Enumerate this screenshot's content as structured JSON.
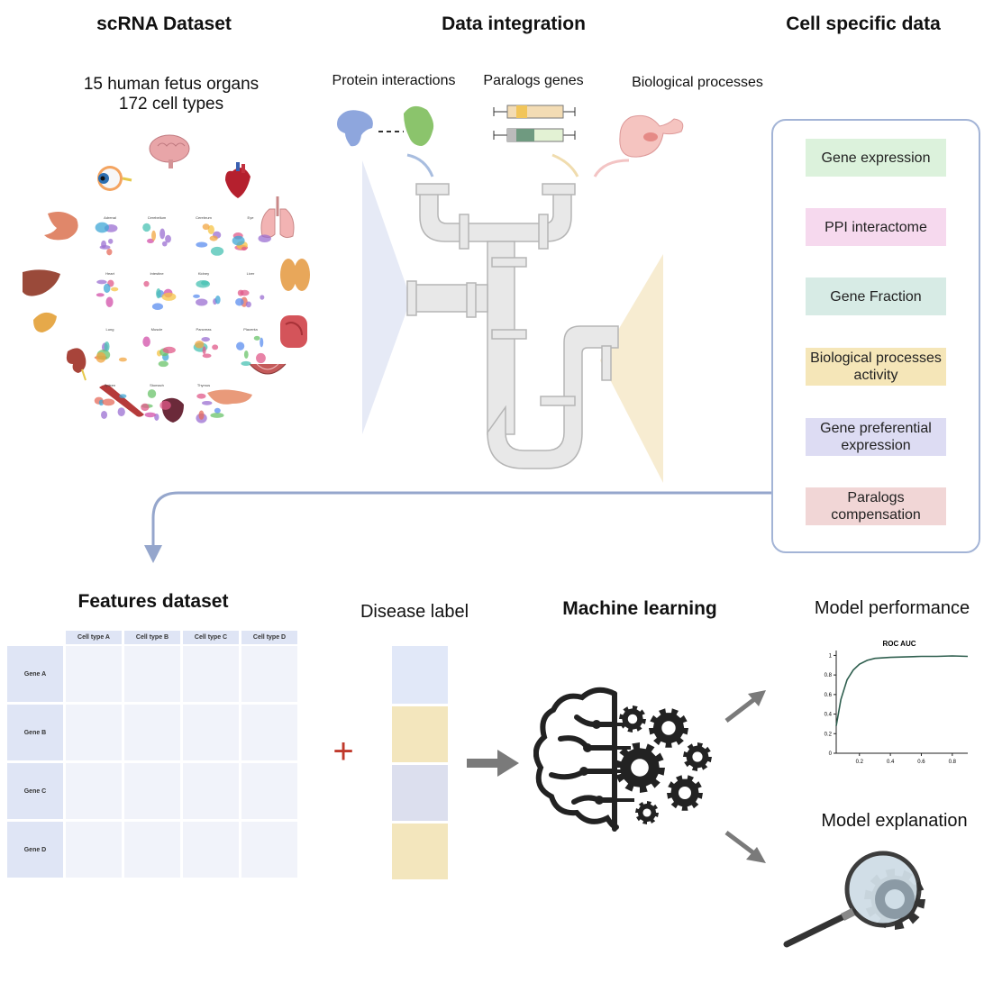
{
  "headers": {
    "scrna": "scRNA Dataset",
    "integration": "Data integration",
    "cell_specific": "Cell specific data"
  },
  "scrna": {
    "line1": "15 human fetus organs",
    "line2": "172 cell types"
  },
  "integration": {
    "protein": "Protein interactions",
    "paralogs": "Paralogs genes",
    "bio": "Biological processes"
  },
  "cell_specific_items": [
    {
      "label": "Gene expression",
      "color": "#dcf2dc"
    },
    {
      "label": "PPI interactome",
      "color": "#f6d9ee"
    },
    {
      "label": "Gene Fraction",
      "color": "#d7ebe5"
    },
    {
      "label": "Biological processes activity",
      "color": "#f5e6b8"
    },
    {
      "label": "Gene preferential expression",
      "color": "#dddcf3"
    },
    {
      "label": "Paralogs compensation",
      "color": "#f1d6d6"
    }
  ],
  "features": {
    "title": "Features dataset",
    "columns": [
      "Cell type A",
      "Cell type B",
      "Cell type C",
      "Cell type D"
    ],
    "rows": [
      "Gene A",
      "Gene B",
      "Gene C",
      "Gene D"
    ]
  },
  "disease": {
    "title": "Disease label",
    "plus": "+",
    "cells": [
      "#e1e8f8",
      "#f3e6bd",
      "#dcdfee",
      "#f3e6bd"
    ]
  },
  "ml": {
    "title": "Machine learning"
  },
  "perf": {
    "title": "Model performance"
  },
  "explain": {
    "title": "Model explanation"
  },
  "chart_data": {
    "type": "line",
    "title": "ROC AUC",
    "x": [
      0.05,
      0.08,
      0.12,
      0.16,
      0.2,
      0.25,
      0.3,
      0.4,
      0.5,
      0.6,
      0.7,
      0.8,
      0.9
    ],
    "y": [
      0.28,
      0.55,
      0.75,
      0.85,
      0.91,
      0.95,
      0.97,
      0.98,
      0.985,
      0.99,
      0.99,
      0.995,
      0.99
    ],
    "xticks": [
      "0.2",
      "0.4",
      "0.6",
      "0.8"
    ],
    "yticks": [
      "0",
      "0.2",
      "0.4",
      "0.6",
      "0.8",
      "1"
    ],
    "xlim": [
      0.05,
      0.9
    ],
    "ylim": [
      0,
      1.05
    ],
    "line_color": "#2f5f4f"
  },
  "organ_labels": [
    "Adrenal",
    "Cerebellum",
    "Cerebrum",
    "Eye",
    "Heart",
    "Intestine",
    "Kidney",
    "Liver",
    "Lung",
    "Muscle",
    "Pancreas",
    "Placenta",
    "Spleen",
    "Stomach",
    "Thymus"
  ],
  "colors": {
    "pipe": "#e6e6e6",
    "pipe_stroke": "#b8b8b8",
    "arrow_blue": "#95a6cc",
    "arrow_gray": "#7a7a7a",
    "plus_red": "#c0392b"
  }
}
